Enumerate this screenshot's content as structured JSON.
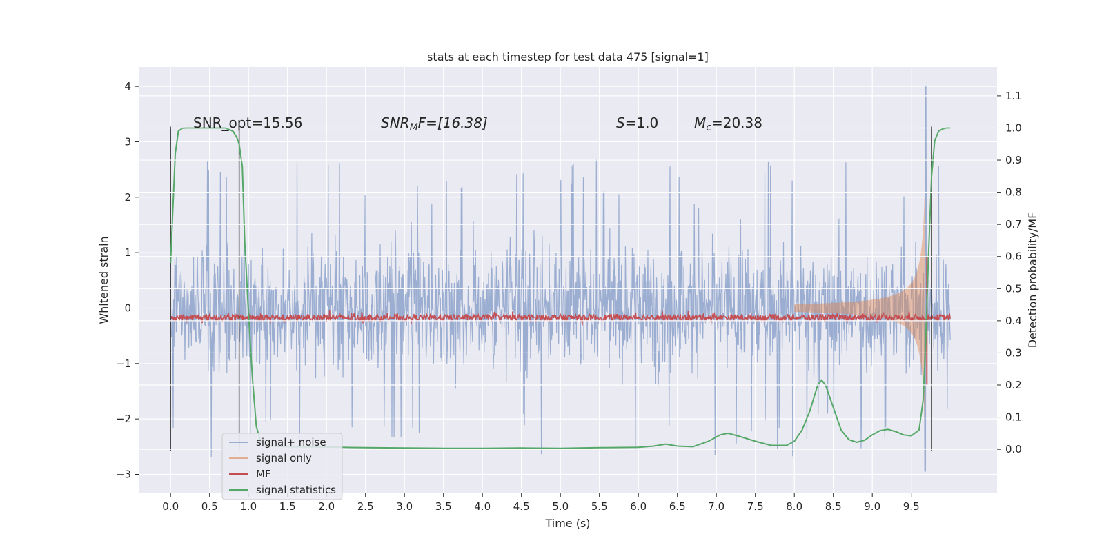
{
  "chart_data": {
    "type": "line",
    "title": "stats at each timestep for test data 475 [signal=1]",
    "xlabel": "Time (s)",
    "ylabel": "Whitened strain",
    "y2label": "Detection probability/MF",
    "xlim": [
      -0.4,
      10.6
    ],
    "ylim": [
      -3.33,
      4.35
    ],
    "y2lim": [
      -0.135,
      1.19
    ],
    "x_ticks": [
      "0.0",
      "0.5",
      "1.0",
      "1.5",
      "2.0",
      "2.5",
      "3.0",
      "3.5",
      "4.0",
      "4.5",
      "5.0",
      "5.5",
      "6.0",
      "6.5",
      "7.0",
      "7.5",
      "8.0",
      "8.5",
      "9.0",
      "9.5"
    ],
    "y_ticks": [
      "−3",
      "−2",
      "−1",
      "0",
      "1",
      "2",
      "3",
      "4"
    ],
    "y2_ticks": [
      "0.0",
      "0.1",
      "0.2",
      "0.3",
      "0.4",
      "0.5",
      "0.6",
      "0.7",
      "0.8",
      "0.9",
      "1.0",
      "1.1"
    ],
    "grid": true,
    "legend_placement": "lower-left",
    "annotations": {
      "snr_opt": "SNR_opt=15.56",
      "snr_mf_main": "SNR",
      "snr_mf_sub": "M",
      "snr_mf_rest": "F=[16.38]",
      "s_main": "S",
      "s_rest": "=1.0",
      "mc_main": "M",
      "mc_sub": "c",
      "mc_rest": "=20.38"
    },
    "vlines_x": [
      0.0,
      0.88,
      9.76
    ],
    "series": [
      {
        "name": "signal+ noise",
        "color": "#4c72b0",
        "description": "whitened strain, noise envelope spanning about ±1.5 with spikes to ±2.8; merger spike near t=9.68",
        "envelope": {
          "x_range": [
            0.0,
            10.0
          ],
          "typical_amplitude": 1.3,
          "max_spike": 4.0,
          "min_spike": -2.95
        }
      },
      {
        "name": "signal only",
        "color": "#dd8452",
        "description": "chirp growing toward merger near t=9.68",
        "envelope": {
          "x_start": 8.0,
          "x_peak": 9.68,
          "peak_amplitude": 2.6
        }
      },
      {
        "name": "MF",
        "color": "#c44e52",
        "description": "matched-filter output on right axis, around 0.41",
        "level_y2": 0.41,
        "spike": {
          "x": 9.7,
          "y2_top": 0.6,
          "y2_bottom": 0.2
        }
      },
      {
        "name": "signal statistics",
        "color": "#55a868",
        "axis": "y2",
        "x": [
          0.0,
          0.03,
          0.06,
          0.1,
          0.15,
          0.2,
          0.3,
          0.4,
          0.5,
          0.6,
          0.7,
          0.8,
          0.85,
          0.88,
          0.92,
          0.95,
          1.0,
          1.05,
          1.1,
          1.15,
          1.2,
          1.3,
          1.5,
          2.0,
          2.5,
          3.0,
          3.5,
          4.0,
          4.5,
          5.0,
          5.5,
          6.0,
          6.2,
          6.35,
          6.5,
          6.7,
          6.9,
          7.05,
          7.15,
          7.3,
          7.5,
          7.7,
          7.9,
          8.0,
          8.1,
          8.2,
          8.3,
          8.35,
          8.4,
          8.5,
          8.6,
          8.7,
          8.8,
          8.9,
          9.0,
          9.1,
          9.2,
          9.3,
          9.4,
          9.5,
          9.6,
          9.65,
          9.68,
          9.72,
          9.76,
          9.8,
          9.85,
          9.9,
          9.95,
          10.0
        ],
        "y": [
          0.58,
          0.75,
          0.92,
          0.99,
          0.999,
          1.0,
          1.0,
          1.0,
          1.0,
          1.0,
          1.0,
          0.99,
          0.97,
          0.95,
          0.88,
          0.65,
          0.42,
          0.22,
          0.07,
          0.03,
          0.015,
          0.01,
          0.008,
          0.007,
          0.005,
          0.004,
          0.003,
          0.003,
          0.004,
          0.003,
          0.005,
          0.006,
          0.01,
          0.016,
          0.01,
          0.008,
          0.025,
          0.045,
          0.05,
          0.04,
          0.025,
          0.012,
          0.012,
          0.025,
          0.06,
          0.12,
          0.2,
          0.215,
          0.2,
          0.13,
          0.06,
          0.03,
          0.022,
          0.028,
          0.045,
          0.058,
          0.062,
          0.055,
          0.045,
          0.042,
          0.06,
          0.15,
          0.3,
          0.6,
          0.85,
          0.96,
          0.99,
          0.997,
          1.0,
          1.0
        ]
      }
    ]
  }
}
